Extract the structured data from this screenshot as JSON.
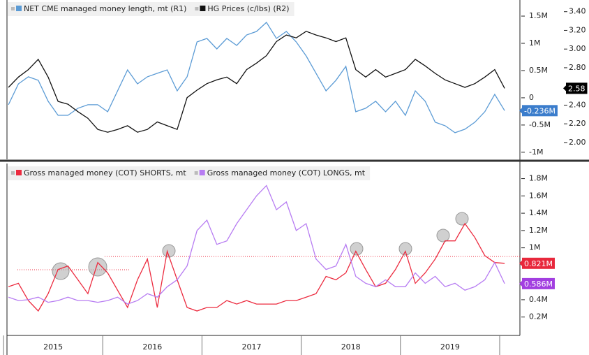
{
  "chart_data": [
    {
      "type": "line",
      "x": [
        2015.05,
        2015.15,
        2015.25,
        2015.35,
        2015.45,
        2015.55,
        2015.65,
        2015.75,
        2015.85,
        2015.95,
        2016.05,
        2016.15,
        2016.25,
        2016.35,
        2016.45,
        2016.55,
        2016.65,
        2016.75,
        2016.85,
        2016.95,
        2017.05,
        2017.15,
        2017.25,
        2017.35,
        2017.45,
        2017.55,
        2017.65,
        2017.75,
        2017.85,
        2017.95,
        2018.05,
        2018.15,
        2018.25,
        2018.35,
        2018.45,
        2018.55,
        2018.65,
        2018.75,
        2018.85,
        2018.95,
        2019.05,
        2019.15,
        2019.25,
        2019.35,
        2019.45,
        2019.55,
        2019.65,
        2019.75,
        2019.85,
        2019.95,
        2020.05
      ],
      "xlim": [
        2015.035,
        2020.204
      ],
      "ylim": [
        -1130000,
        1770000
      ],
      "yticks": [
        {
          "value": 1500000,
          "label": "1.5M"
        },
        {
          "value": 1000000,
          "label": "1M"
        },
        {
          "value": 500000,
          "label": "0.5M"
        },
        0,
        {
          "value": -500000,
          "label": "-0.5M"
        },
        {
          "value": -1000000,
          "label": "-1M"
        }
      ],
      "y2lim": [
        1.82,
        3.51
      ],
      "y2ticks": [
        {
          "value": 3.4,
          "label": "3.40"
        },
        {
          "value": 3.2,
          "label": "3.20"
        },
        {
          "value": 3.0,
          "label": "3.00"
        },
        {
          "value": 2.8,
          "label": "2.80"
        },
        {
          "value": 2.4,
          "label": "2.40"
        },
        {
          "value": 2.2,
          "label": "2.20"
        },
        {
          "value": 2.0,
          "label": "2.00"
        }
      ],
      "series": [
        {
          "name": "NET CME managed money length, mt (R1)",
          "color": "#5b9bd5",
          "axis": "y",
          "last_label": "-0.236M",
          "label_color": "#3b7dcc",
          "values": [
            -128000,
            256000,
            385000,
            321000,
            -64000,
            -321000,
            -321000,
            -192000,
            -128000,
            -128000,
            -256000,
            128000,
            513000,
            256000,
            385000,
            449000,
            513000,
            128000,
            385000,
            1026000,
            1090000,
            897000,
            1090000,
            962000,
            1154000,
            1218000,
            1385000,
            1090000,
            1218000,
            1026000,
            769000,
            449000,
            128000,
            321000,
            577000,
            -256000,
            -192000,
            -64000,
            -256000,
            -64000,
            -321000,
            128000,
            -64000,
            -449000,
            -513000,
            -641000,
            -577000,
            -449000,
            -256000,
            64000,
            -236000
          ]
        },
        {
          "name": "HG Prices (c/lbs)  (R2)",
          "color": "#111111",
          "axis": "y2",
          "last_label": "2.58",
          "label_color": "#000000",
          "values": [
            2.59,
            2.7,
            2.78,
            2.89,
            2.7,
            2.44,
            2.41,
            2.33,
            2.26,
            2.14,
            2.11,
            2.14,
            2.18,
            2.11,
            2.14,
            2.22,
            2.18,
            2.14,
            2.48,
            2.56,
            2.63,
            2.67,
            2.7,
            2.63,
            2.78,
            2.85,
            2.93,
            3.08,
            3.15,
            3.12,
            3.19,
            3.15,
            3.12,
            3.08,
            3.12,
            2.78,
            2.7,
            2.78,
            2.7,
            2.74,
            2.78,
            2.89,
            2.82,
            2.74,
            2.67,
            2.63,
            2.59,
            2.63,
            2.7,
            2.78,
            2.58
          ]
        }
      ]
    },
    {
      "type": "line",
      "x": [
        2015.05,
        2015.15,
        2015.25,
        2015.35,
        2015.45,
        2015.55,
        2015.65,
        2015.75,
        2015.85,
        2015.95,
        2016.05,
        2016.15,
        2016.25,
        2016.35,
        2016.45,
        2016.55,
        2016.65,
        2016.75,
        2016.85,
        2016.95,
        2017.05,
        2017.15,
        2017.25,
        2017.35,
        2017.45,
        2017.55,
        2017.65,
        2017.75,
        2017.85,
        2017.95,
        2018.05,
        2018.15,
        2018.25,
        2018.35,
        2018.45,
        2018.55,
        2018.65,
        2018.75,
        2018.85,
        2018.95,
        2019.05,
        2019.15,
        2019.25,
        2019.35,
        2019.45,
        2019.55,
        2019.65,
        2019.75,
        2019.85,
        2019.95,
        2020.05
      ],
      "xlim": [
        2015.035,
        2020.204
      ],
      "ylim": [
        60000,
        1950000
      ],
      "yticks": [
        {
          "value": 1800000,
          "label": "1.8M"
        },
        {
          "value": 1600000,
          "label": "1.6M"
        },
        {
          "value": 1400000,
          "label": "1.4M"
        },
        {
          "value": 1200000,
          "label": "1.2M"
        },
        {
          "value": 1000000,
          "label": "1M"
        },
        {
          "value": 400000,
          "label": "0.4M"
        },
        {
          "value": 200000,
          "label": "0.2M"
        }
      ],
      "year_labels": [
        "2015",
        "2016",
        "2017",
        "2018",
        "2019"
      ],
      "year_bounds": [
        2015,
        2016,
        2017,
        2018,
        2019,
        2020
      ],
      "series": [
        {
          "name": "Gross managed money (COT) SHORTS, mt",
          "color": "#ec2b3f",
          "axis": "y",
          "last_label": "0.821M",
          "label_color": "#e8283c",
          "values": [
            550000,
            590000,
            390000,
            270000,
            470000,
            750000,
            790000,
            630000,
            470000,
            830000,
            710000,
            510000,
            310000,
            630000,
            870000,
            310000,
            960000,
            630000,
            310000,
            270000,
            310000,
            310000,
            390000,
            350000,
            390000,
            350000,
            350000,
            350000,
            390000,
            390000,
            430000,
            470000,
            670000,
            630000,
            710000,
            960000,
            750000,
            550000,
            590000,
            750000,
            960000,
            590000,
            710000,
            870000,
            1080000,
            1080000,
            1280000,
            1120000,
            910000,
            830000,
            821000
          ]
        },
        {
          "name": "Gross managed money (COT) LONGS, mt",
          "color": "#b77cf2",
          "axis": "y",
          "last_label": "0.586M",
          "label_color": "#a23fe0",
          "values": [
            430000,
            390000,
            400000,
            430000,
            370000,
            390000,
            430000,
            390000,
            390000,
            370000,
            390000,
            430000,
            350000,
            390000,
            470000,
            430000,
            550000,
            630000,
            790000,
            1200000,
            1320000,
            1040000,
            1080000,
            1280000,
            1440000,
            1600000,
            1720000,
            1440000,
            1530000,
            1200000,
            1280000,
            870000,
            750000,
            790000,
            1040000,
            670000,
            590000,
            550000,
            630000,
            550000,
            550000,
            710000,
            590000,
            670000,
            550000,
            590000,
            510000,
            550000,
            630000,
            830000,
            586000
          ]
        }
      ]
    }
  ]
}
